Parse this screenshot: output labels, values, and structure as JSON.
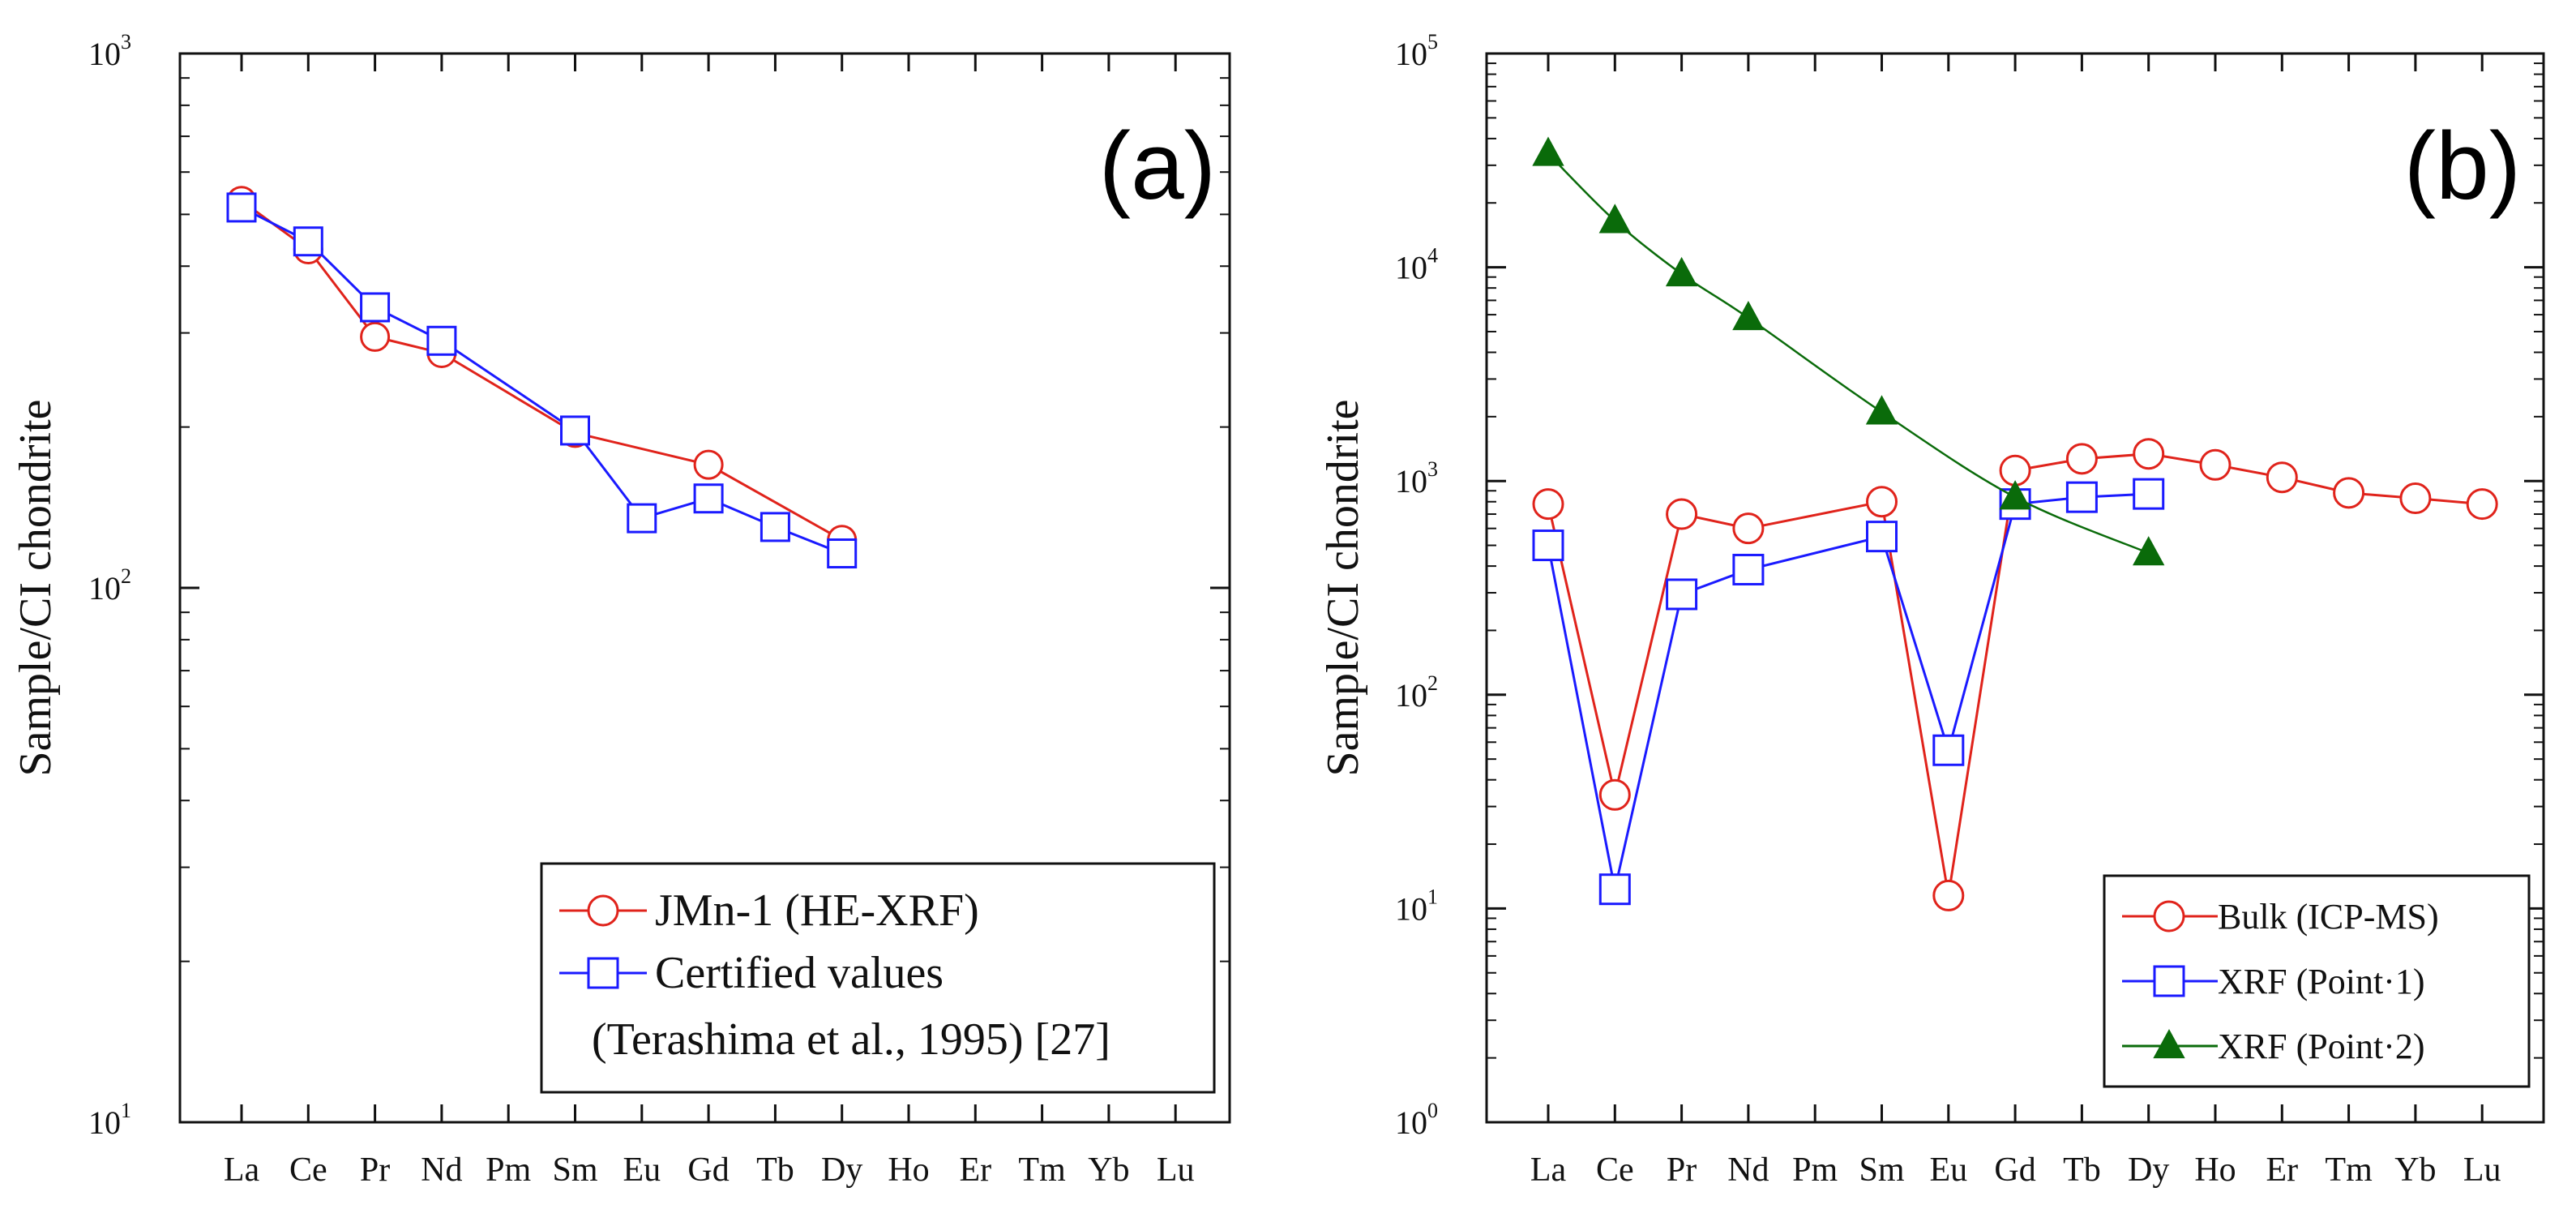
{
  "colors": {
    "red": "#e0231b",
    "blue": "#1a1aff",
    "green": "#0a6b0a"
  },
  "chart_data": [
    {
      "type": "line",
      "panel_tag": "(a)",
      "ylabel": "Sample/CI chondrite",
      "y_scale": "log",
      "ylim": [
        10,
        1000
      ],
      "y_tick_labels": [
        {
          "value": 10,
          "base": "10",
          "exp": "1"
        },
        {
          "value": 100,
          "base": "10",
          "exp": "2"
        },
        {
          "value": 1000,
          "base": "10",
          "exp": "3"
        }
      ],
      "categories": [
        "La",
        "Ce",
        "Pr",
        "Nd",
        "Pm",
        "Sm",
        "Eu",
        "Gd",
        "Tb",
        "Dy",
        "Ho",
        "Er",
        "Tm",
        "Yb",
        "Lu"
      ],
      "legend_position": "bottom-right",
      "series": [
        {
          "name": "JMn-1 (HE-XRF)",
          "color": "red",
          "marker": "open-circle",
          "values": [
            530,
            430,
            295,
            275,
            null,
            195,
            null,
            170,
            null,
            123,
            null,
            null,
            null,
            null,
            null
          ]
        },
        {
          "name": "Certified values",
          "name_line2": "(Terashima et al., 1995) [27]",
          "color": "blue",
          "marker": "open-square",
          "values": [
            515,
            445,
            335,
            290,
            null,
            197,
            135,
            147,
            130,
            116,
            null,
            null,
            null,
            null,
            null
          ]
        }
      ]
    },
    {
      "type": "line",
      "panel_tag": "(b)",
      "ylabel": "Sample/CI chondrite",
      "y_scale": "log",
      "ylim": [
        1,
        100000
      ],
      "y_tick_labels": [
        {
          "value": 1,
          "base": "10",
          "exp": "0"
        },
        {
          "value": 10,
          "base": "10",
          "exp": "1"
        },
        {
          "value": 100,
          "base": "10",
          "exp": "2"
        },
        {
          "value": 1000,
          "base": "10",
          "exp": "3"
        },
        {
          "value": 10000,
          "base": "10",
          "exp": "4"
        },
        {
          "value": 100000,
          "base": "10",
          "exp": "5"
        }
      ],
      "categories": [
        "La",
        "Ce",
        "Pr",
        "Nd",
        "Pm",
        "Sm",
        "Eu",
        "Gd",
        "Tb",
        "Dy",
        "Ho",
        "Er",
        "Tm",
        "Yb",
        "Lu"
      ],
      "legend_position": "bottom-right",
      "series": [
        {
          "name": "Bulk (ICP-MS)",
          "color": "red",
          "marker": "open-circle",
          "values": [
            780,
            34,
            700,
            600,
            null,
            800,
            11.5,
            1120,
            1270,
            1340,
            1190,
            1040,
            880,
            830,
            780
          ]
        },
        {
          "name": "XRF (Point·1)",
          "color": "blue",
          "marker": "open-square",
          "values": [
            500,
            12.3,
            295,
            385,
            null,
            550,
            55,
            780,
            840,
            870,
            null,
            null,
            null,
            null,
            null
          ]
        },
        {
          "name": "XRF (Point·2)",
          "color": "green",
          "marker": "filled-triangle",
          "values": [
            34000,
            16500,
            9300,
            5800,
            null,
            2100,
            null,
            840,
            null,
            460,
            null,
            null,
            null,
            null,
            null
          ]
        }
      ]
    }
  ]
}
